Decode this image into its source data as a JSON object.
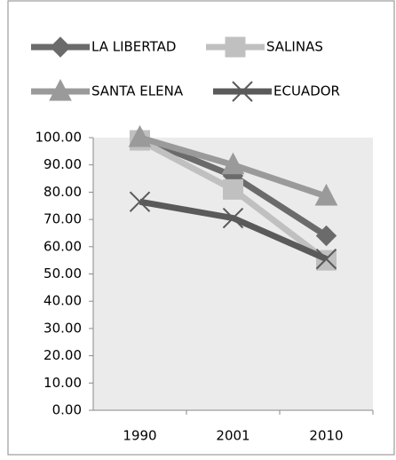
{
  "chart_data": {
    "type": "line",
    "categories": [
      "1990",
      "2001",
      "2010"
    ],
    "series": [
      {
        "name": "LA LIBERTAD",
        "color": "#6b6b6b",
        "marker": "diamond",
        "values": [
          100,
          86,
          64
        ]
      },
      {
        "name": "SALINAS",
        "color": "#c0c0c0",
        "marker": "square",
        "values": [
          99,
          81,
          55
        ]
      },
      {
        "name": "SANTA ELENA",
        "color": "#9a9a9a",
        "marker": "triangle",
        "values": [
          100,
          90,
          78.5
        ]
      },
      {
        "name": "ECUADOR",
        "color": "#5a5a5a",
        "marker": "x",
        "values": [
          76.5,
          70.5,
          55.5
        ]
      }
    ],
    "ylim": [
      0,
      100
    ],
    "yticks": [
      {
        "value": 0,
        "label": "0.00"
      },
      {
        "value": 10,
        "label": "10.00"
      },
      {
        "value": 20,
        "label": "20.00"
      },
      {
        "value": 30,
        "label": "30.00"
      },
      {
        "value": 40,
        "label": "40.00"
      },
      {
        "value": 50,
        "label": "50.00"
      },
      {
        "value": 60,
        "label": "60.00"
      },
      {
        "value": 70,
        "label": "70.00"
      },
      {
        "value": 80,
        "label": "80.00"
      },
      {
        "value": 90,
        "label": "90.00"
      },
      {
        "value": 100,
        "label": "100.00"
      }
    ],
    "legend": "top"
  }
}
